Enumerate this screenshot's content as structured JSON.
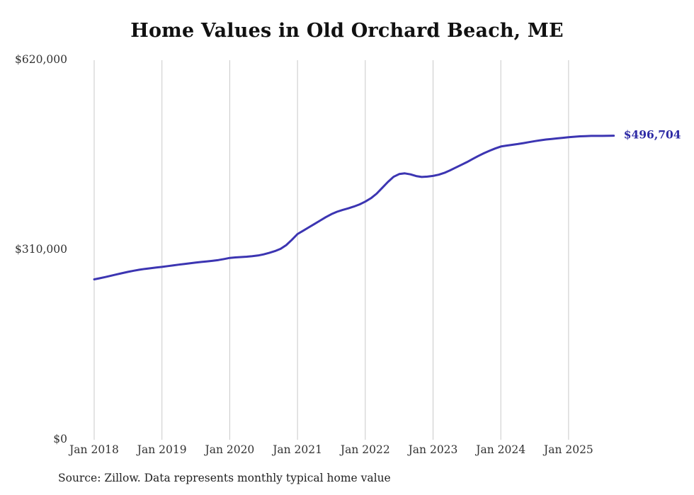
{
  "title": "Home Values in Old Orchard Beach, ME",
  "source_note": "Source: Zillow. Data represents monthly typical home value",
  "chart_data": {
    "type": "line",
    "title": "Home Values in Old Orchard Beach, ME",
    "xlabel": "",
    "ylabel": "",
    "ylim": [
      0,
      620000
    ],
    "grid": "vertical-only",
    "legend": false,
    "end_label": "$496,704",
    "end_value": 496704,
    "x_range": {
      "start": "Jan 2018",
      "end": "Sep 2025",
      "frequency": "monthly"
    },
    "x_tick_labels": [
      "Jan 2018",
      "Jan 2019",
      "Jan 2020",
      "Jan 2021",
      "Jan 2022",
      "Jan 2023",
      "Jan 2024",
      "Jan 2025"
    ],
    "y_ticks": [
      {
        "value": 0,
        "label": "$0"
      },
      {
        "value": 310000,
        "label": "$310,000"
      },
      {
        "value": 620000,
        "label": "$620,000"
      }
    ],
    "values": [
      262000,
      263800,
      265800,
      268000,
      270200,
      272300,
      274300,
      276100,
      277700,
      279100,
      280300,
      281400,
      282400,
      283600,
      284800,
      286000,
      287200,
      288300,
      289400,
      290400,
      291400,
      292400,
      293600,
      295200,
      297000,
      297800,
      298400,
      299000,
      299800,
      301000,
      302800,
      305200,
      308200,
      311800,
      318000,
      326500,
      336000,
      341500,
      347000,
      352500,
      358000,
      363500,
      368500,
      372500,
      375500,
      378000,
      381000,
      384500,
      389000,
      394500,
      402000,
      411500,
      421000,
      429500,
      434000,
      435200,
      433500,
      430800,
      429300,
      429800,
      431000,
      433000,
      436000,
      440000,
      444500,
      449000,
      453500,
      458500,
      463500,
      468000,
      472000,
      475800,
      479000,
      480500,
      481800,
      483000,
      484500,
      486200,
      487800,
      489200,
      490400,
      491400,
      492300,
      493200,
      494200,
      495000,
      495600,
      496000,
      496300,
      496400,
      496300,
      496500,
      496704
    ],
    "colors": {
      "line": "#3c35b2",
      "end_label": "#2e2ba5",
      "grid": "#c9c9c9",
      "axis_text": "#333333",
      "title": "#111111"
    }
  }
}
